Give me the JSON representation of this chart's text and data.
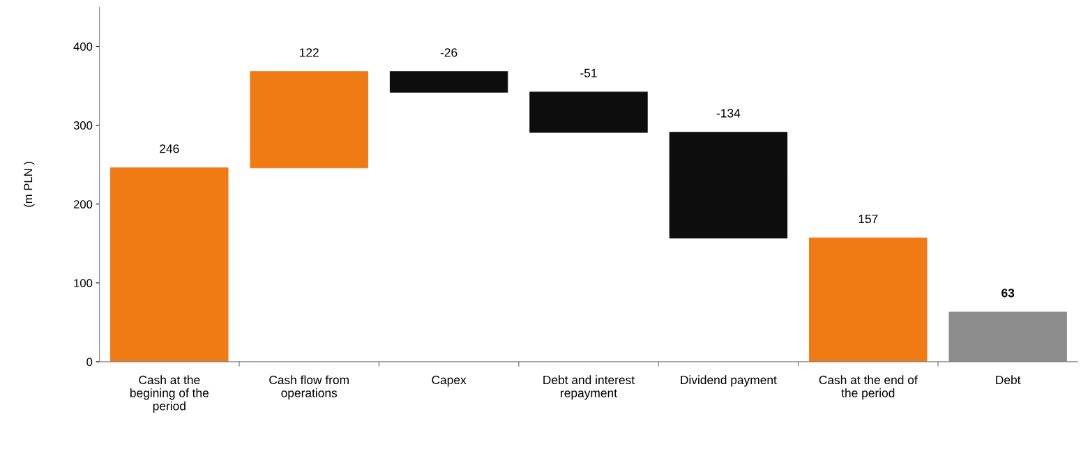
{
  "chart_data": {
    "type": "bar",
    "ylabel": "(m PLN )",
    "categories": [
      "Cash at the begining of the period",
      "Cash flow from operations",
      "Capex",
      "Debt and interest repayment",
      "Dividend payment",
      "Cash at the end of the period",
      "Debt"
    ],
    "values": [
      246,
      122,
      -26,
      -51,
      -134,
      157,
      63
    ],
    "base": [
      0,
      246,
      368,
      342,
      291,
      0,
      0
    ],
    "colors": [
      "#f07a14",
      "#f07a14",
      "#0d0d0d",
      "#0d0d0d",
      "#0d0d0d",
      "#f07a14",
      "#8c8c8c"
    ],
    "ylim": [
      0,
      450
    ],
    "yticks": [
      0,
      100,
      200,
      300,
      400
    ],
    "data_labels": true,
    "grid": false,
    "legend": false
  }
}
